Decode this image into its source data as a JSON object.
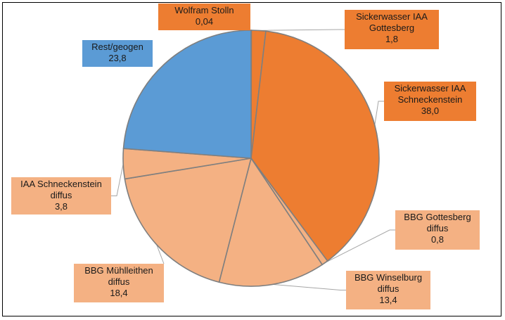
{
  "chart_data": {
    "type": "pie",
    "title": "",
    "slices": [
      {
        "name_lines": [
          "Wolfram Stolln"
        ],
        "value_label": "0,04",
        "value": 0.04,
        "color": "#ED7D31"
      },
      {
        "name_lines": [
          "Sickerwasser  IAA",
          "Gottesberg"
        ],
        "value_label": "1,8",
        "value": 1.8,
        "color": "#ED7D31"
      },
      {
        "name_lines": [
          "Sickerwasser  IAA",
          "Schneckenstein"
        ],
        "value_label": "38,0",
        "value": 38.0,
        "color": "#ED7D31"
      },
      {
        "name_lines": [
          "BBG Gottesberg",
          "diffus"
        ],
        "value_label": "0,8",
        "value": 0.8,
        "color": "#F4B183"
      },
      {
        "name_lines": [
          "BBG Winselburg",
          "diffus"
        ],
        "value_label": "13,4",
        "value": 13.4,
        "color": "#F4B183"
      },
      {
        "name_lines": [
          "BBG Mühlleithen",
          "diffus"
        ],
        "value_label": "18,4",
        "value": 18.4,
        "color": "#F4B183"
      },
      {
        "name_lines": [
          "IAA Schneckenstein",
          "diffus"
        ],
        "value_label": "3,8",
        "value": 3.8,
        "color": "#F4B183"
      },
      {
        "name_lines": [
          "Rest/geogen"
        ],
        "value_label": "23,8",
        "value": 23.8,
        "color": "#5B9BD5"
      }
    ]
  }
}
